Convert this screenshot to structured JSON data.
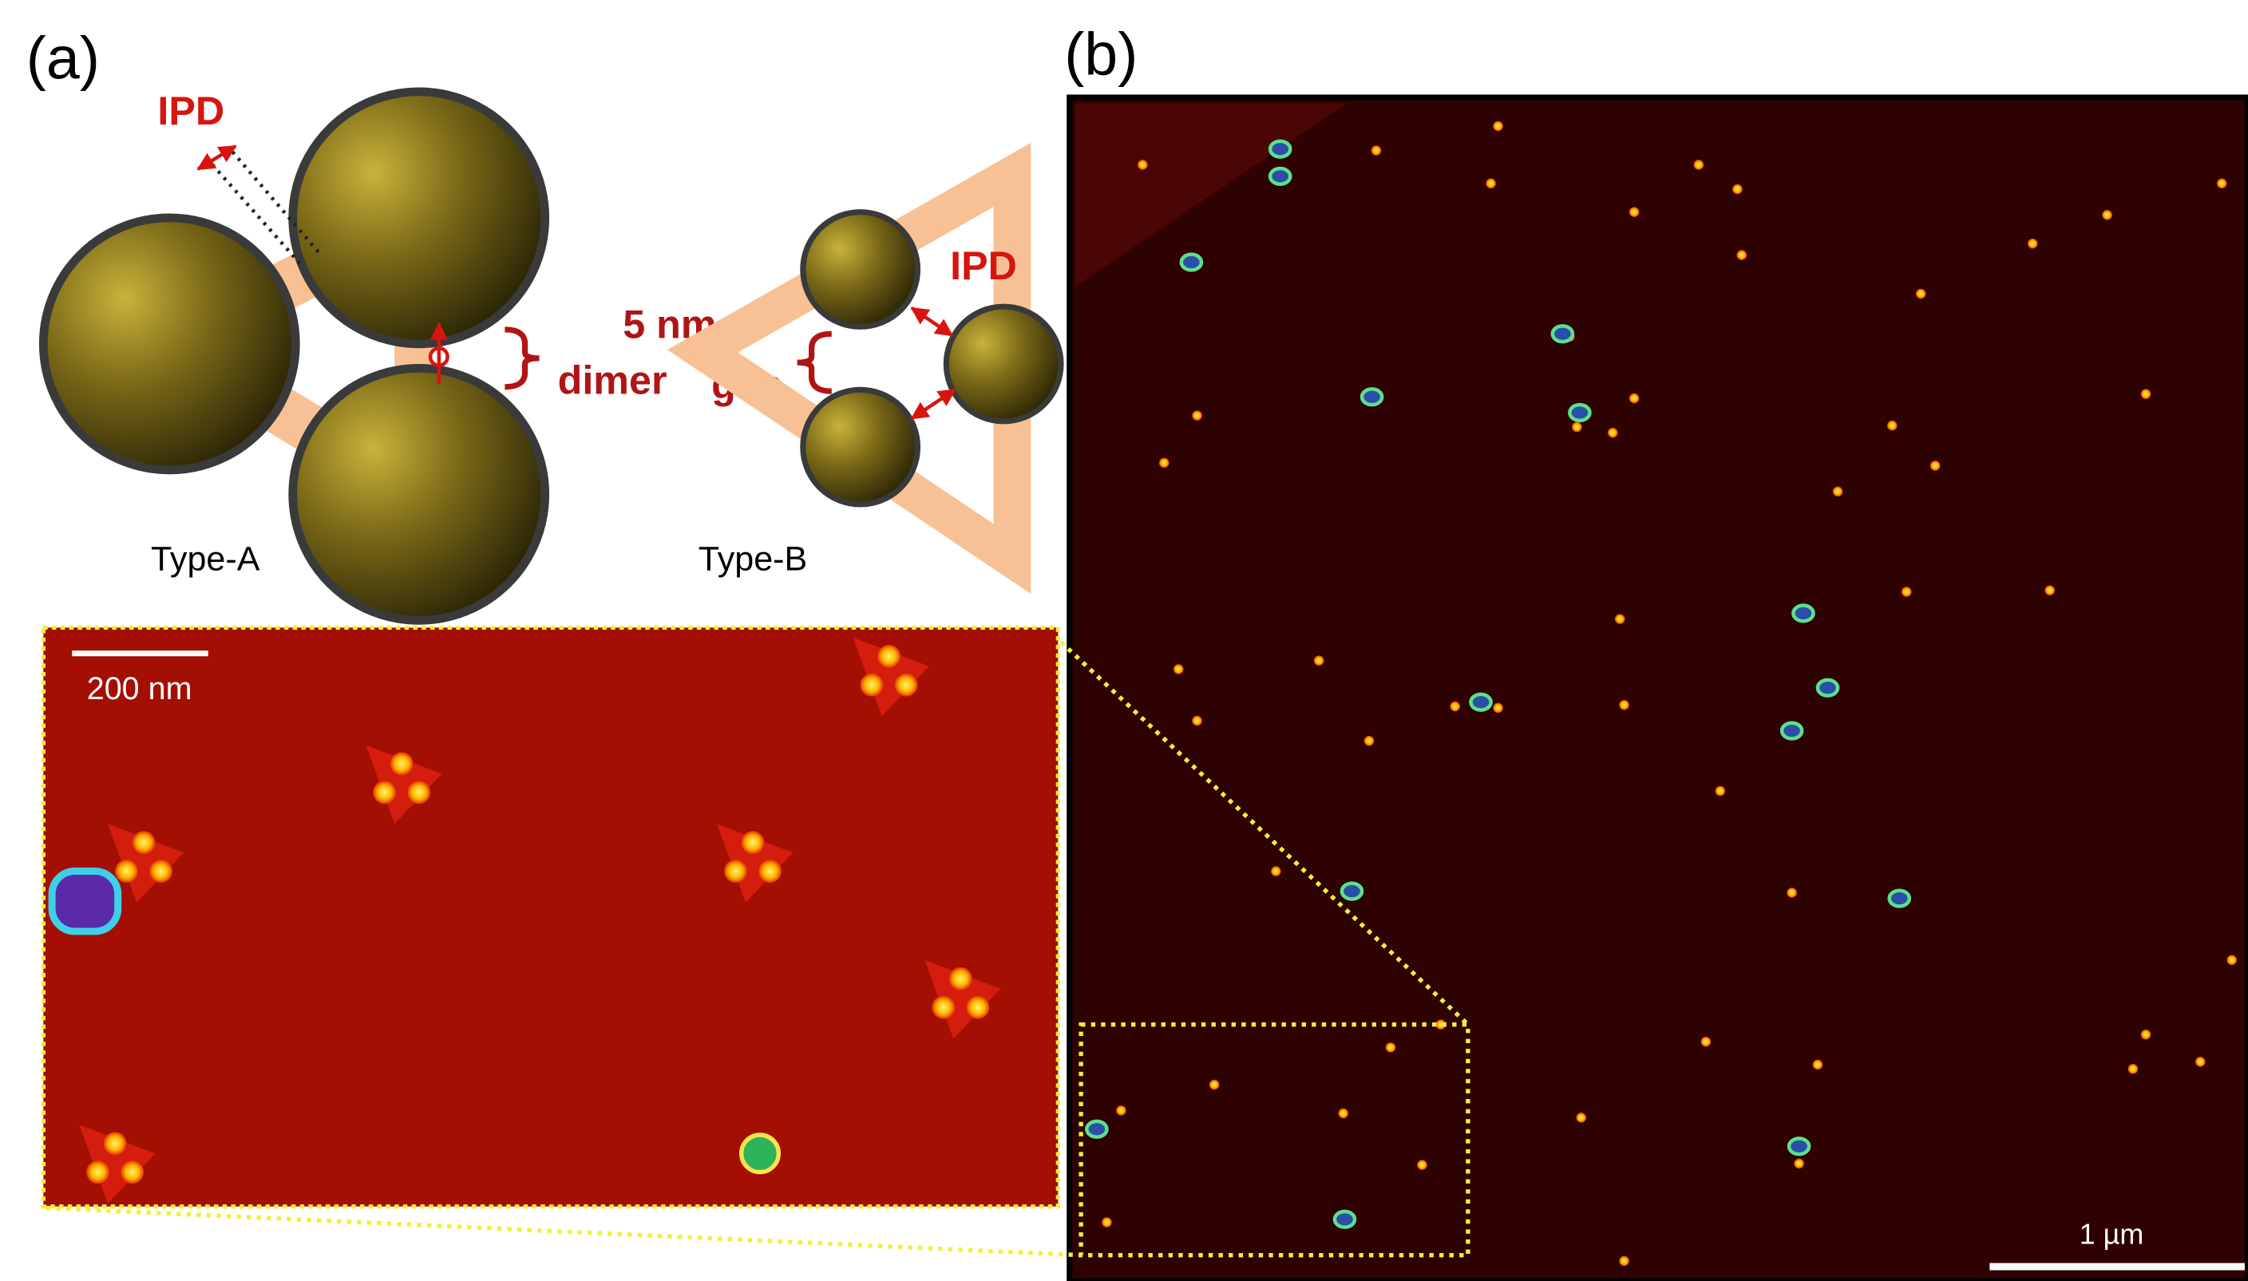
{
  "panel_a": {
    "label": "(a)",
    "ipd_a": "IPD",
    "ipd_b": "IPD",
    "gap_size": "5 nm",
    "dimer": "dimer",
    "gap": "gap",
    "type_a": "Type-A",
    "type_b": "Type-B",
    "inset_scale": "200 nm"
  },
  "panel_b": {
    "label": "(b)",
    "scale": "1 µm"
  }
}
